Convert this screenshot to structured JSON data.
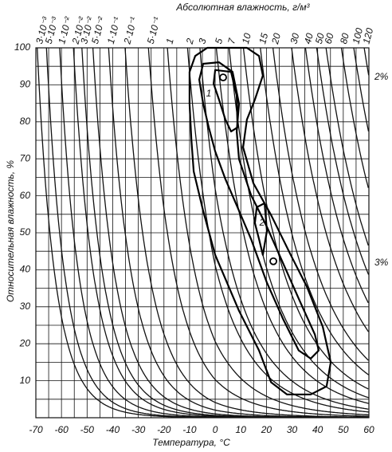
{
  "chart_data": {
    "type": "psychrometric",
    "title": "Абсолютная влажность, г/м³",
    "x_label": "Температура, °С",
    "y_label": "Относительная влажность, %",
    "xlim": [
      -70,
      60
    ],
    "ylim": [
      0,
      100
    ],
    "xticks": [
      -70,
      -60,
      -50,
      -40,
      -30,
      -20,
      -10,
      0,
      10,
      20,
      30,
      40,
      50,
      60
    ],
    "yticks": [
      10,
      20,
      30,
      40,
      50,
      60,
      70,
      80,
      90,
      100
    ],
    "grid": true,
    "absolute_humidity_curves": [
      {
        "value": 0.003,
        "label": "3·10⁻³"
      },
      {
        "value": 0.005,
        "label": "5·10⁻³"
      },
      {
        "value": 0.01,
        "label": "1·10⁻²"
      },
      {
        "value": 0.02,
        "label": "2·10⁻²"
      },
      {
        "value": 0.03,
        "label": "3·10⁻²"
      },
      {
        "value": 0.05,
        "label": "5·10⁻²"
      },
      {
        "value": 0.1,
        "label": "1·10⁻¹"
      },
      {
        "value": 0.2,
        "label": "2·10⁻¹"
      },
      {
        "value": 0.5,
        "label": "5·10⁻¹"
      },
      1,
      2,
      3,
      5,
      7,
      10,
      15,
      20,
      30,
      40,
      50,
      60,
      80,
      100,
      120
    ],
    "contours": [
      {
        "x": [
          -7.8,
          -3.1,
          12.4,
          17.1,
          18.6,
          15.5,
          12.4,
          10.9,
          14.9,
          21.8,
          29.5,
          35.8,
          42,
          45.1,
          43.5,
          37.3,
          28,
          21.8,
          17.1,
          9.3,
          0,
          -4.7,
          -8.4,
          -9.3,
          -10,
          -10
        ],
        "y": [
          97.8,
          100,
          100,
          97.8,
          92.5,
          86,
          80.6,
          73.1,
          63.4,
          54.8,
          44,
          35.4,
          24.6,
          15,
          8.5,
          6.3,
          6.3,
          9.6,
          18.2,
          28.9,
          44,
          55.9,
          66.6,
          75.2,
          84.9,
          93.5
        ]
      },
      {
        "x": [
          -4.7,
          1.5,
          6.8,
          9.3,
          8.4,
          9.3,
          14,
          20.2,
          26.4,
          32.6,
          38.9,
          40.4,
          37.3,
          32.6,
          26.4,
          20.2,
          14,
          8.7,
          4,
          0,
          -2.5,
          -4.7,
          -6.2
        ],
        "y": [
          95.7,
          96.1,
          93.5,
          84.9,
          77.4,
          69.9,
          60.2,
          51.6,
          41.9,
          32.2,
          22.5,
          18.2,
          16,
          18.2,
          26.8,
          36.5,
          48.3,
          56.9,
          64.5,
          72,
          78.5,
          84.9,
          91.4
        ]
      },
      {
        "x": [
          0,
          6.2,
          8.4,
          8.7,
          6.2,
          4,
          1.5,
          -0.6
        ],
        "y": [
          94,
          93.5,
          87.1,
          78.5,
          77.4,
          80.6,
          86,
          90.3
        ]
      },
      {
        "x": [
          16.2,
          19.3,
          20.2,
          18.6,
          17.1,
          15.5
        ],
        "y": [
          56.9,
          58,
          50.5,
          44,
          48.3,
          52.6
        ]
      }
    ],
    "points": {
      "x": [
        3.1,
        22.7
      ],
      "y": [
        92,
        42.3
      ]
    },
    "annotations": [
      "1",
      "2",
      "2%",
      "3%"
    ]
  }
}
